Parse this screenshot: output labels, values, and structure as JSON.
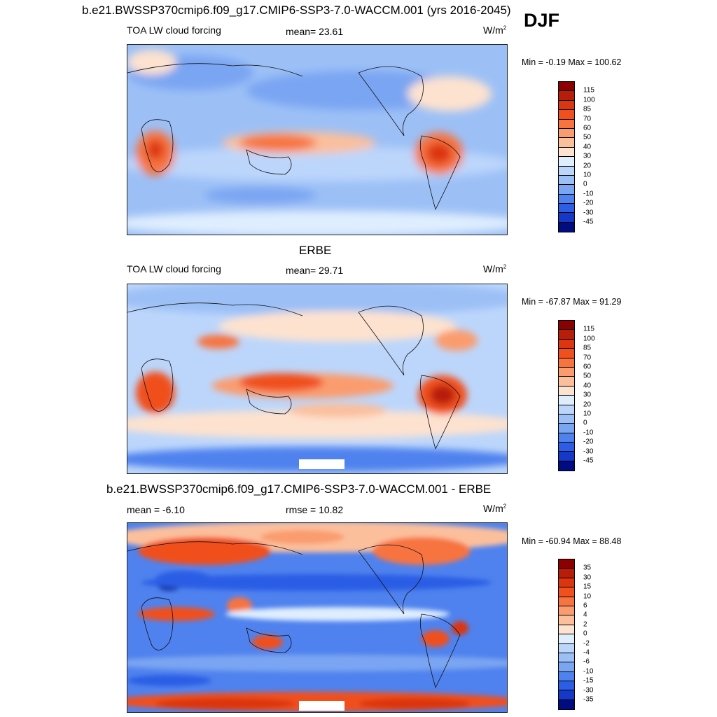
{
  "title": "b.e21.BWSSP370cmip6.f09_g17.CMIP6-SSP3-7.0-WACCM.001 (yrs 2016-2045)",
  "season": "DJF",
  "panels": [
    {
      "id": "model",
      "heading": "",
      "left_label": "TOA LW cloud forcing",
      "center_label": "mean=  23.61",
      "units": "W/m",
      "units_sup": "2",
      "minmax": "Min =  -0.19 Max = 100.62"
    },
    {
      "id": "obs",
      "heading": "ERBE",
      "left_label": "TOA LW cloud forcing",
      "center_label": "mean=  29.71",
      "units": "W/m",
      "units_sup": "2",
      "minmax": "Min = -67.87 Max =  91.29"
    },
    {
      "id": "diff",
      "heading": "b.e21.BWSSP370cmip6.f09_g17.CMIP6-SSP3-7.0-WACCM.001 - ERBE",
      "left_label": "mean =  -6.10",
      "center_label": "rmse =  10.82",
      "units": "W/m",
      "units_sup": "2",
      "minmax": "Min = -60.94 Max =  88.48"
    }
  ],
  "colorbars": {
    "main": {
      "labels": [
        "115",
        "100",
        "85",
        "70",
        "60",
        "50",
        "40",
        "30",
        "20",
        "10",
        "0",
        "-10",
        "-20",
        "-30",
        "-45"
      ],
      "colors": [
        "#8b0000",
        "#b81d0a",
        "#dc3510",
        "#f0501e",
        "#f7733f",
        "#fa9c6e",
        "#fbbf9c",
        "#fde2cf",
        "#dfeeff",
        "#bcd6fb",
        "#9cc0f6",
        "#7aa5f2",
        "#4f82ee",
        "#2b5de5",
        "#1638c8",
        "#000c80"
      ]
    },
    "diff": {
      "labels": [
        "35",
        "30",
        "15",
        "10",
        "6",
        "4",
        "2",
        "0",
        "-2",
        "-4",
        "-6",
        "-10",
        "-15",
        "-30",
        "-35"
      ],
      "colors": [
        "#8b0000",
        "#b81d0a",
        "#dc3510",
        "#f0501e",
        "#f7733f",
        "#fa9c6e",
        "#fbbf9c",
        "#fde2cf",
        "#dfeeff",
        "#bcd6fb",
        "#9cc0f6",
        "#7aa5f2",
        "#4f82ee",
        "#2b5de5",
        "#1638c8",
        "#000c80"
      ]
    }
  },
  "chart_data": [
    {
      "type": "heatmap",
      "title": "TOA LW cloud forcing",
      "subtitle": "b.e21.BWSSP370cmip6.f09_g17.CMIP6-SSP3-7.0-WACCM.001 (yrs 2016-2045) DJF",
      "units": "W/m2",
      "mean": 23.61,
      "min": -0.19,
      "max": 100.62,
      "levels": [
        -45,
        -30,
        -20,
        -10,
        0,
        10,
        20,
        30,
        40,
        50,
        60,
        70,
        85,
        100,
        115
      ]
    },
    {
      "type": "heatmap",
      "title": "ERBE TOA LW cloud forcing",
      "units": "W/m2",
      "mean": 29.71,
      "min": -67.87,
      "max": 91.29,
      "levels": [
        -45,
        -30,
        -20,
        -10,
        0,
        10,
        20,
        30,
        40,
        50,
        60,
        70,
        85,
        100,
        115
      ]
    },
    {
      "type": "heatmap",
      "title": "b.e21.BWSSP370cmip6.f09_g17.CMIP6-SSP3-7.0-WACCM.001 - ERBE",
      "units": "W/m2",
      "mean": -6.1,
      "rmse": 10.82,
      "min": -60.94,
      "max": 88.48,
      "levels": [
        -35,
        -30,
        -15,
        -10,
        -6,
        -4,
        -2,
        0,
        2,
        4,
        6,
        10,
        15,
        30,
        35
      ]
    }
  ]
}
